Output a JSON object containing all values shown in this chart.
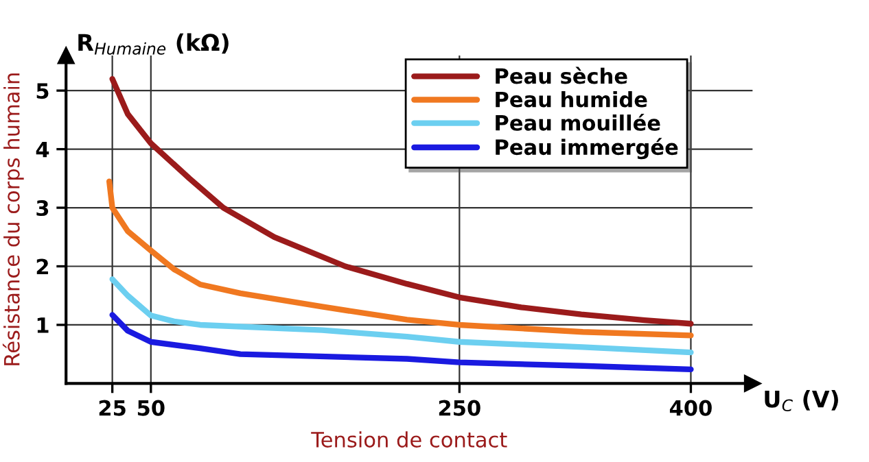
{
  "chart_data": {
    "type": "line",
    "xlabel": "Tension de contact",
    "ylabel": "Résistance du corps humain",
    "annotations": [
      "R$_{Humaine}$ (kΩ)",
      "U$_{C}$ (V)"
    ],
    "xlim": [
      -5,
      440
    ],
    "ylim": [
      0,
      5.6
    ],
    "xticks": [
      25,
      50,
      250,
      400
    ],
    "yticks": [
      1,
      2,
      3,
      4,
      5
    ],
    "grid": true,
    "legend": "top right",
    "line_style": "solid",
    "marker": "none",
    "series": [
      {
        "name": "Peau sèche",
        "color": "#9b1b1b",
        "x": [
          25,
          35,
          50,
          75,
          97,
          130,
          176,
          216,
          250,
          290,
          329,
          370,
          400
        ],
        "values": [
          5.2,
          4.6,
          4.1,
          3.5,
          3.0,
          2.5,
          2.0,
          1.7,
          1.47,
          1.3,
          1.18,
          1.08,
          1.02
        ]
      },
      {
        "name": "Peau humide",
        "color": "#f07820",
        "x": [
          23,
          25,
          35,
          50,
          65,
          82,
          108,
          161,
          216,
          250,
          330,
          400
        ],
        "values": [
          3.45,
          3.0,
          2.6,
          2.27,
          1.95,
          1.69,
          1.54,
          1.31,
          1.09,
          1.0,
          0.88,
          0.82
        ]
      },
      {
        "name": "Peau mouillée",
        "color": "#6ccff0",
        "x": [
          25,
          35,
          50,
          65,
          82,
          161,
          216,
          250,
          330,
          400
        ],
        "values": [
          1.78,
          1.5,
          1.16,
          1.06,
          1.0,
          0.91,
          0.8,
          0.71,
          0.62,
          0.53
        ]
      },
      {
        "name": "Peau immergée",
        "color": "#1a1ae0",
        "x": [
          25,
          35,
          50,
          82,
          108,
          216,
          250,
          330,
          400
        ],
        "values": [
          1.17,
          0.9,
          0.71,
          0.6,
          0.5,
          0.42,
          0.36,
          0.3,
          0.24
        ]
      }
    ]
  }
}
